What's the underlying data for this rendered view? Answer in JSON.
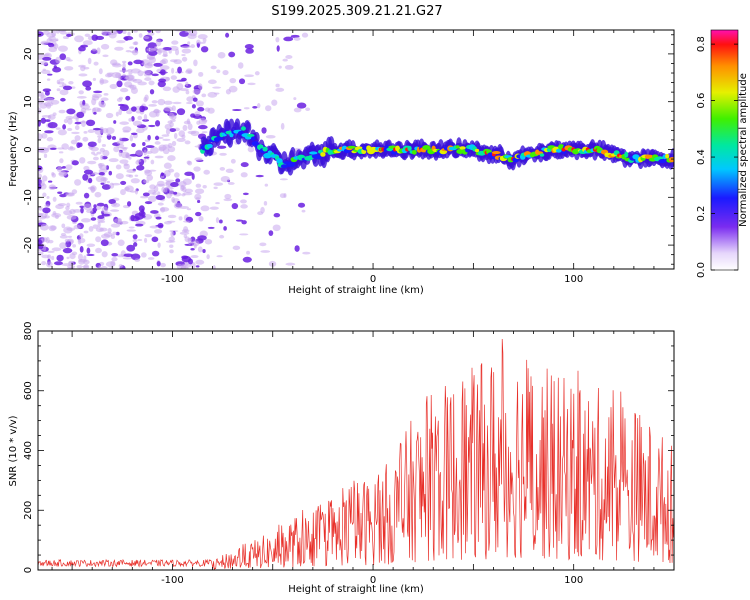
{
  "title": "S199.2025.309.21.21.G27",
  "colors": {
    "snr_line": "#e8302a",
    "frame": "#000000",
    "scatter_faint": "#c9a8ee",
    "scatter_strong": "#6a1fe0"
  },
  "chart_data": [
    {
      "id": "spectrogram",
      "type": "heatmap",
      "xlabel": "Height of straight line (km)",
      "ylabel": "Frequency (Hz)",
      "xlim": [
        -167,
        150
      ],
      "ylim": [
        -25,
        25
      ],
      "xticks": [
        -100,
        0,
        100
      ],
      "yticks": [
        -20,
        -10,
        0,
        10,
        20
      ],
      "xtick_labels": [
        "-100",
        "0",
        "100"
      ],
      "ytick_labels": [
        "-20",
        "-10",
        "0",
        "10",
        "20"
      ],
      "colorbar": {
        "label": "Normalized spectral amplitude",
        "range": [
          0,
          0.85
        ],
        "ticks": [
          0.0,
          0.2,
          0.4,
          0.6,
          0.8
        ],
        "tick_labels": [
          "0.0",
          "0.2",
          "0.4",
          "0.6",
          "0.8"
        ]
      },
      "signal_track": {
        "description": "narrow band near 0 Hz from about -85 km onward",
        "x_start": -85,
        "x_end": 150,
        "center_hz_points": [
          [
            -85,
            0
          ],
          [
            -75,
            3
          ],
          [
            -65,
            4
          ],
          [
            -55,
            0
          ],
          [
            -45,
            -3
          ],
          [
            -35,
            -2
          ],
          [
            -20,
            0
          ],
          [
            0,
            0
          ],
          [
            25,
            0
          ],
          [
            50,
            0
          ],
          [
            70,
            -2
          ],
          [
            90,
            0
          ],
          [
            110,
            0
          ],
          [
            130,
            -2
          ],
          [
            150,
            -2
          ]
        ]
      }
    },
    {
      "id": "snr",
      "type": "line",
      "xlabel": "Height of straight line (km)",
      "ylabel": "SNR (10 * v/v)",
      "xlim": [
        -167,
        150
      ],
      "ylim": [
        0,
        800
      ],
      "xticks": [
        -100,
        0,
        100
      ],
      "yticks": [
        0,
        200,
        400,
        600,
        800
      ],
      "xtick_labels": [
        "-100",
        "0",
        "100"
      ],
      "ytick_labels": [
        "0",
        "200",
        "400",
        "600",
        "800"
      ],
      "envelope": {
        "x": [
          -167,
          -80,
          -70,
          -50,
          -40,
          -20,
          -10,
          0,
          10,
          20,
          30,
          50,
          70,
          90,
          110,
          130,
          150
        ],
        "y": [
          30,
          30,
          70,
          130,
          180,
          230,
          300,
          320,
          380,
          520,
          600,
          680,
          780,
          660,
          620,
          560,
          420
        ]
      }
    }
  ]
}
